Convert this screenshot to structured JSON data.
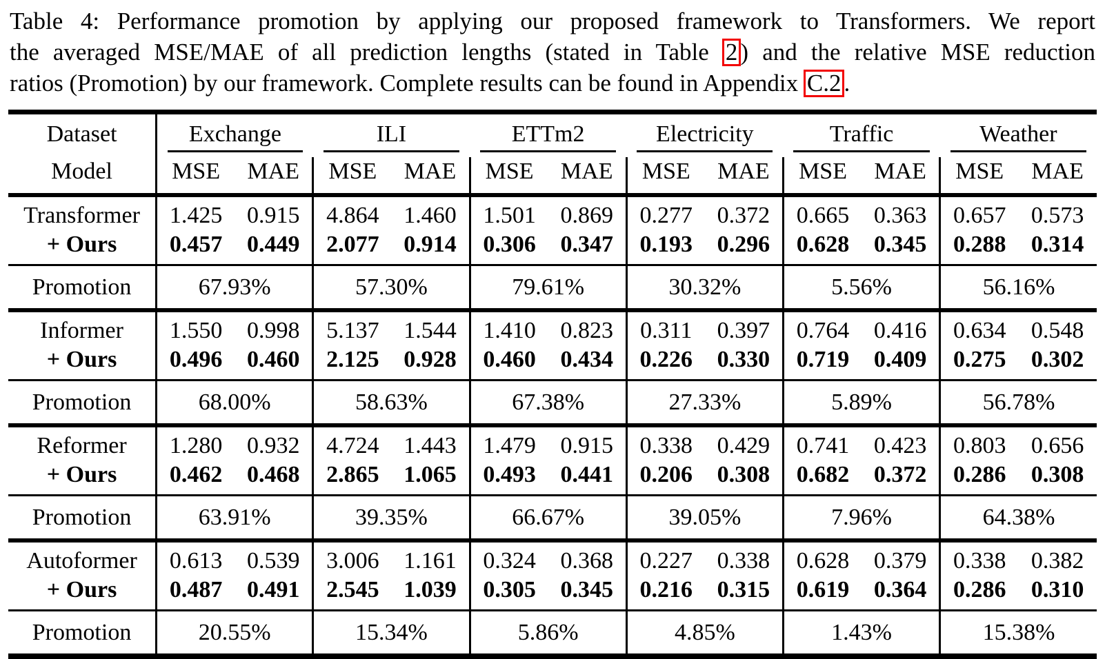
{
  "caption": {
    "line1": "Table 4: Performance promotion by applying our proposed framework to Transformers. We report",
    "line2_pre": "the averaged MSE/MAE of all prediction lengths (stated in Table",
    "line2_link": "2",
    "line2_post": ") and the relative MSE reduction",
    "line3_pre": "ratios (Promotion) by our framework. Complete results can be found in Appendix",
    "line3_link": "C.2",
    "line3_post": "."
  },
  "colors": {
    "text": "#000000",
    "background": "#ffffff",
    "link_box": "#f20000"
  },
  "table": {
    "header": {
      "dataset_label": "Dataset",
      "model_label": "Model",
      "datasets": [
        "Exchange",
        "ILI",
        "ETTm2",
        "Electricity",
        "Traffic",
        "Weather"
      ],
      "metrics": [
        "MSE",
        "MAE"
      ]
    },
    "ours_label": "+ Ours",
    "promotion_label": "Promotion",
    "groups": [
      {
        "model": "Transformer",
        "base": [
          "1.425",
          "0.915",
          "4.864",
          "1.460",
          "1.501",
          "0.869",
          "0.277",
          "0.372",
          "0.665",
          "0.363",
          "0.657",
          "0.573"
        ],
        "ours": [
          "0.457",
          "0.449",
          "2.077",
          "0.914",
          "0.306",
          "0.347",
          "0.193",
          "0.296",
          "0.628",
          "0.345",
          "0.288",
          "0.314"
        ],
        "promotions": [
          "67.93%",
          "57.30%",
          "79.61%",
          "30.32%",
          "5.56%",
          "56.16%"
        ]
      },
      {
        "model": "Informer",
        "base": [
          "1.550",
          "0.998",
          "5.137",
          "1.544",
          "1.410",
          "0.823",
          "0.311",
          "0.397",
          "0.764",
          "0.416",
          "0.634",
          "0.548"
        ],
        "ours": [
          "0.496",
          "0.460",
          "2.125",
          "0.928",
          "0.460",
          "0.434",
          "0.226",
          "0.330",
          "0.719",
          "0.409",
          "0.275",
          "0.302"
        ],
        "promotions": [
          "68.00%",
          "58.63%",
          "67.38%",
          "27.33%",
          "5.89%",
          "56.78%"
        ]
      },
      {
        "model": "Reformer",
        "base": [
          "1.280",
          "0.932",
          "4.724",
          "1.443",
          "1.479",
          "0.915",
          "0.338",
          "0.429",
          "0.741",
          "0.423",
          "0.803",
          "0.656"
        ],
        "ours": [
          "0.462",
          "0.468",
          "2.865",
          "1.065",
          "0.493",
          "0.441",
          "0.206",
          "0.308",
          "0.682",
          "0.372",
          "0.286",
          "0.308"
        ],
        "promotions": [
          "63.91%",
          "39.35%",
          "66.67%",
          "39.05%",
          "7.96%",
          "64.38%"
        ]
      },
      {
        "model": "Autoformer",
        "base": [
          "0.613",
          "0.539",
          "3.006",
          "1.161",
          "0.324",
          "0.368",
          "0.227",
          "0.338",
          "0.628",
          "0.379",
          "0.338",
          "0.382"
        ],
        "ours": [
          "0.487",
          "0.491",
          "2.545",
          "1.039",
          "0.305",
          "0.345",
          "0.216",
          "0.315",
          "0.619",
          "0.364",
          "0.286",
          "0.310"
        ],
        "promotions": [
          "20.55%",
          "15.34%",
          "5.86%",
          "4.85%",
          "1.43%",
          "15.38%"
        ]
      }
    ]
  }
}
